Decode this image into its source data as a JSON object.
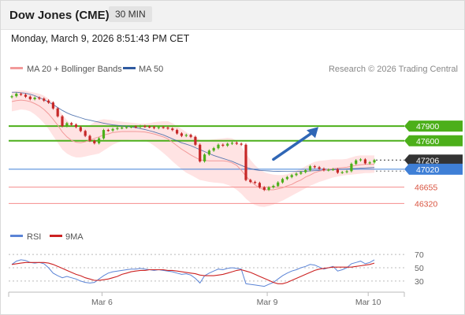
{
  "header": {
    "title": "Dow Jones (CME)",
    "timeframe": "30 MIN",
    "datetime": "Monday, March 9, 2026 8:51:43 PM CET"
  },
  "legend": {
    "ma20_label": "MA 20 + Bollinger Bands",
    "ma50_label": "MA 50",
    "credit": "Research © 2026 Trading Central",
    "rsi_label": "RSI",
    "rsi_ma_label": "9MA"
  },
  "colors": {
    "ma20": "#f29a9a",
    "ma50": "#2f5aa0",
    "bollinger_fill": "#ffe3e3",
    "resistance": "#4caf1a",
    "pivot": "#3f7fd6",
    "support": "#f58c8c",
    "current": "#333333",
    "candle_up": "#4caf1a",
    "candle_down": "#c62828",
    "rsi": "#5b84d6",
    "rsi_ma": "#cc2222",
    "arrow": "#2f66b5"
  },
  "chart_data": [
    {
      "type": "candlestick",
      "title": "",
      "x_ticks": [
        "Mar 6",
        "Mar 9",
        "Mar 10"
      ],
      "levels": [
        {
          "value": 47900,
          "label": "47900",
          "kind": "resistance"
        },
        {
          "value": 47600,
          "label": "47600",
          "kind": "resistance"
        },
        {
          "value": 47206,
          "label": "47206",
          "kind": "current"
        },
        {
          "value": 47020,
          "label": "47020",
          "kind": "pivot"
        },
        {
          "value": 46655,
          "label": "46655",
          "kind": "support"
        },
        {
          "value": 46320,
          "label": "46320",
          "kind": "support"
        }
      ],
      "ylim": [
        46150,
        48850
      ],
      "arrow": {
        "from": [
          57,
          47220
        ],
        "to": [
          62,
          47850
        ],
        "direction": "up"
      },
      "close": [
        48510,
        48560,
        48540,
        48500,
        48450,
        48480,
        48460,
        48420,
        48380,
        48260,
        48100,
        47900,
        47960,
        47930,
        47880,
        47800,
        47700,
        47600,
        47550,
        47650,
        47820,
        47810,
        47840,
        47860,
        47870,
        47880,
        47890,
        47880,
        47900,
        47890,
        47880,
        47860,
        47880,
        47870,
        47850,
        47820,
        47750,
        47700,
        47720,
        47680,
        47520,
        47180,
        47320,
        47400,
        47450,
        47520,
        47500,
        47540,
        47560,
        47540,
        47520,
        46800,
        46760,
        46740,
        46650,
        46600,
        46650,
        46680,
        46750,
        46820,
        46860,
        46900,
        46930,
        46960,
        47000,
        47080,
        47060,
        47030,
        47000,
        47010,
        47020,
        46950,
        46960,
        46980,
        47130,
        47200,
        47220,
        47140,
        47160,
        47206
      ],
      "bollinger_upper": [
        48600,
        48620,
        48630,
        48620,
        48600,
        48580,
        48560,
        48520,
        48460,
        48380,
        48280,
        48140,
        48020,
        47930,
        47880,
        47860,
        47880,
        47920,
        47980,
        48020,
        48040,
        48030,
        48020,
        48000,
        47990,
        47980,
        47970,
        47960,
        47950,
        47950,
        47960,
        47980,
        47990,
        48000,
        48000,
        47960,
        47900,
        47840,
        47780,
        47720,
        47680,
        47620,
        47620,
        47620,
        47630,
        47640,
        47650,
        47660,
        47650,
        47600,
        47480,
        47340,
        47210,
        47100,
        47020,
        46960,
        46930,
        46910,
        46900,
        46900,
        46920,
        46950,
        46990,
        47030,
        47080,
        47130,
        47170,
        47190,
        47200,
        47210,
        47220,
        47220,
        47220,
        47230,
        47260,
        47290,
        47300,
        47300,
        47300,
        47300
      ],
      "bollinger_lower": [
        48200,
        48220,
        48240,
        48230,
        48200,
        48140,
        48060,
        47960,
        47840,
        47700,
        47560,
        47420,
        47340,
        47290,
        47260,
        47260,
        47280,
        47300,
        47320,
        47340,
        47400,
        47460,
        47520,
        47560,
        47590,
        47610,
        47620,
        47620,
        47620,
        47600,
        47560,
        47500,
        47430,
        47350,
        47270,
        47180,
        47100,
        47020,
        46950,
        46900,
        46850,
        46800,
        46780,
        46760,
        46750,
        46740,
        46730,
        46700,
        46660,
        46600,
        46520,
        46420,
        46340,
        46290,
        46260,
        46250,
        46270,
        46300,
        46340,
        46380,
        46430,
        46480,
        46530,
        46580,
        46630,
        46680,
        46720,
        46760,
        46790,
        46820,
        46850,
        46870,
        46890,
        46900,
        46910,
        46920,
        46930,
        46940,
        46940,
        46950
      ],
      "ma20": [
        48400,
        48420,
        48430,
        48420,
        48400,
        48360,
        48310,
        48240,
        48150,
        48040,
        47920,
        47780,
        47680,
        47610,
        47570,
        47560,
        47580,
        47610,
        47650,
        47680,
        47720,
        47740,
        47770,
        47780,
        47790,
        47790,
        47790,
        47790,
        47785,
        47780,
        47760,
        47740,
        47710,
        47680,
        47640,
        47570,
        47500,
        47430,
        47370,
        47310,
        47260,
        47210,
        47200,
        47190,
        47190,
        47190,
        47190,
        47180,
        47150,
        47100,
        47000,
        46880,
        46780,
        46700,
        46640,
        46600,
        46600,
        46600,
        46620,
        46640,
        46680,
        46710,
        46760,
        46800,
        46860,
        46900,
        46950,
        46980,
        47000,
        47020,
        47030,
        47040,
        47050,
        47060,
        47080,
        47100,
        47110,
        47120,
        47120,
        47120
      ],
      "ma50": [
        48590,
        48590,
        48580,
        48570,
        48550,
        48520,
        48480,
        48440,
        48390,
        48340,
        48280,
        48220,
        48170,
        48130,
        48100,
        48070,
        48040,
        48020,
        48000,
        47980,
        47960,
        47940,
        47925,
        47915,
        47905,
        47895,
        47885,
        47870,
        47850,
        47830,
        47805,
        47780,
        47750,
        47720,
        47680,
        47640,
        47600,
        47560,
        47530,
        47500,
        47460,
        47420,
        47380,
        47340,
        47300,
        47270,
        47240,
        47210,
        47180,
        47140,
        47100,
        47060,
        47030,
        47010,
        46995,
        46990,
        46985,
        46980,
        46978,
        46976,
        46975,
        46975,
        46975,
        46978,
        46980,
        46985,
        46990,
        46995,
        47000,
        47005,
        47010,
        47015,
        47020,
        47025,
        47030,
        47035,
        47040,
        47045,
        47050,
        47055
      ]
    },
    {
      "type": "line",
      "title": "",
      "y_ticks": [
        70,
        50,
        30
      ],
      "ylim": [
        18,
        82
      ],
      "series": [
        {
          "name": "RSI",
          "values": [
            55,
            60,
            62,
            61,
            58,
            57,
            58,
            56,
            50,
            42,
            38,
            35,
            37,
            35,
            33,
            30,
            28,
            27,
            28,
            33,
            38,
            42,
            44,
            45,
            46,
            47,
            48,
            48,
            49,
            48,
            47,
            46,
            47,
            46,
            45,
            44,
            42,
            40,
            41,
            39,
            34,
            27,
            38,
            42,
            45,
            48,
            47,
            49,
            50,
            49,
            48,
            26,
            25,
            24,
            23,
            22,
            25,
            28,
            33,
            38,
            42,
            45,
            47,
            50,
            52,
            55,
            54,
            51,
            48,
            50,
            52,
            45,
            47,
            50,
            56,
            58,
            60,
            56,
            58,
            62
          ]
        },
        {
          "name": "9MA",
          "values": [
            55,
            56,
            57,
            58,
            58,
            58,
            58,
            58,
            57,
            55,
            52,
            49,
            46,
            43,
            40,
            38,
            35,
            33,
            31,
            31,
            32,
            33,
            35,
            37,
            40,
            42,
            44,
            45,
            46,
            46,
            47,
            47,
            47,
            47,
            46,
            46,
            45,
            44,
            43,
            42,
            41,
            39,
            38,
            38,
            38,
            39,
            40,
            42,
            44,
            46,
            47,
            45,
            43,
            40,
            37,
            34,
            31,
            28,
            26,
            26,
            28,
            31,
            34,
            37,
            40,
            43,
            46,
            48,
            49,
            50,
            51,
            51,
            51,
            51,
            51,
            52,
            53,
            54,
            55,
            57
          ]
        }
      ]
    }
  ]
}
